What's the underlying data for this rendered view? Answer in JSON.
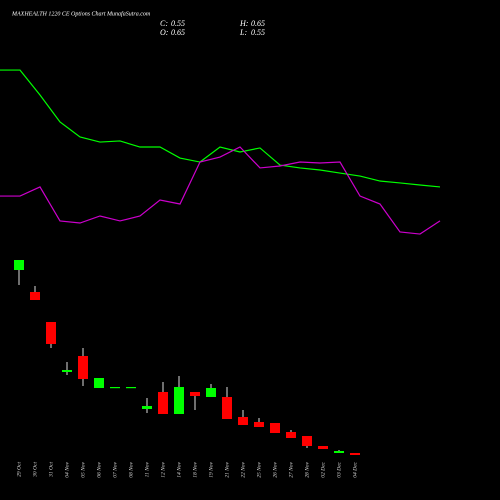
{
  "chart_data": [
    {
      "type": "line",
      "ylim": [
        0,
        100
      ],
      "series": [
        {
          "color": "#00ff00",
          "values": [
            94.7,
            94.7,
            81.6,
            67.4,
            59.5,
            56.8,
            57.4,
            54.2,
            54.2,
            48.4,
            46.3,
            54.2,
            51.6,
            53.7,
            44.7,
            43.2,
            42.1,
            40.5,
            38.9,
            36.3,
            35.3,
            34.2,
            33.2
          ]
        },
        {
          "color": "#cc00cc",
          "values": [
            28.4,
            28.4,
            33.2,
            15.3,
            14.2,
            17.9,
            15.3,
            17.9,
            26.3,
            24.2,
            46.3,
            48.9,
            54.2,
            43.2,
            44.2,
            46.3,
            45.8,
            46.3,
            28.4,
            24.2,
            9.5,
            8.4,
            15.3
          ]
        }
      ]
    },
    {
      "type": "candlestick",
      "title": "MAXHEALTH 1220 CE Options Chart MunafaSutra.com",
      "ohlc": [
        {
          "label": "C:",
          "value": 0.55
        },
        {
          "label": "H:",
          "value": 0.65
        },
        {
          "label": "O:",
          "value": 0.65
        },
        {
          "label": "L:",
          "value": 0.55
        }
      ],
      "categories": [
        "29 Oct",
        "30 Oct",
        "31 Oct",
        "04 Nov",
        "05 Nov",
        "06 Nov",
        "07 Nov",
        "08 Nov",
        "11 Nov",
        "12 Nov",
        "14 Nov",
        "18 Nov",
        "19 Nov",
        "21 Nov",
        "22 Nov",
        "25 Nov",
        "26 Nov",
        "27 Nov",
        "28 Nov",
        "02 Dec",
        "03 Dec",
        "04 Dec"
      ],
      "open": [
        9.8,
        8.7,
        7.2,
        4.7,
        5.5,
        3.9,
        3.9,
        3.9,
        2.85,
        3.7,
        2.6,
        3.7,
        3.45,
        3.45,
        2.45,
        2.2,
        2.15,
        1.7,
        1.5,
        1.0,
        0.65,
        0.65
      ],
      "high": [
        10.3,
        9.0,
        7.2,
        5.2,
        5.9,
        4.4,
        3.95,
        3.95,
        3.4,
        4.2,
        4.5,
        3.7,
        4.1,
        3.95,
        2.8,
        2.4,
        2.15,
        1.8,
        1.5,
        1.0,
        0.8,
        0.65
      ],
      "low": [
        9.05,
        8.3,
        5.9,
        4.55,
        4.0,
        3.9,
        3.9,
        3.9,
        2.65,
        2.6,
        2.6,
        2.8,
        3.45,
        2.35,
        2.05,
        1.95,
        1.65,
        1.4,
        0.9,
        0.85,
        0.65,
        0.55
      ],
      "close": [
        10.3,
        8.3,
        6.1,
        4.8,
        4.35,
        4.4,
        3.95,
        3.95,
        3.0,
        2.6,
        3.95,
        3.5,
        3.9,
        2.35,
        2.05,
        1.95,
        1.65,
        1.4,
        1.0,
        0.85,
        0.75,
        0.55
      ],
      "up_color": "#00ff00",
      "down_color": "#ff0000",
      "wick_color": "#dddddd",
      "ylim": [
        0,
        11
      ]
    }
  ]
}
